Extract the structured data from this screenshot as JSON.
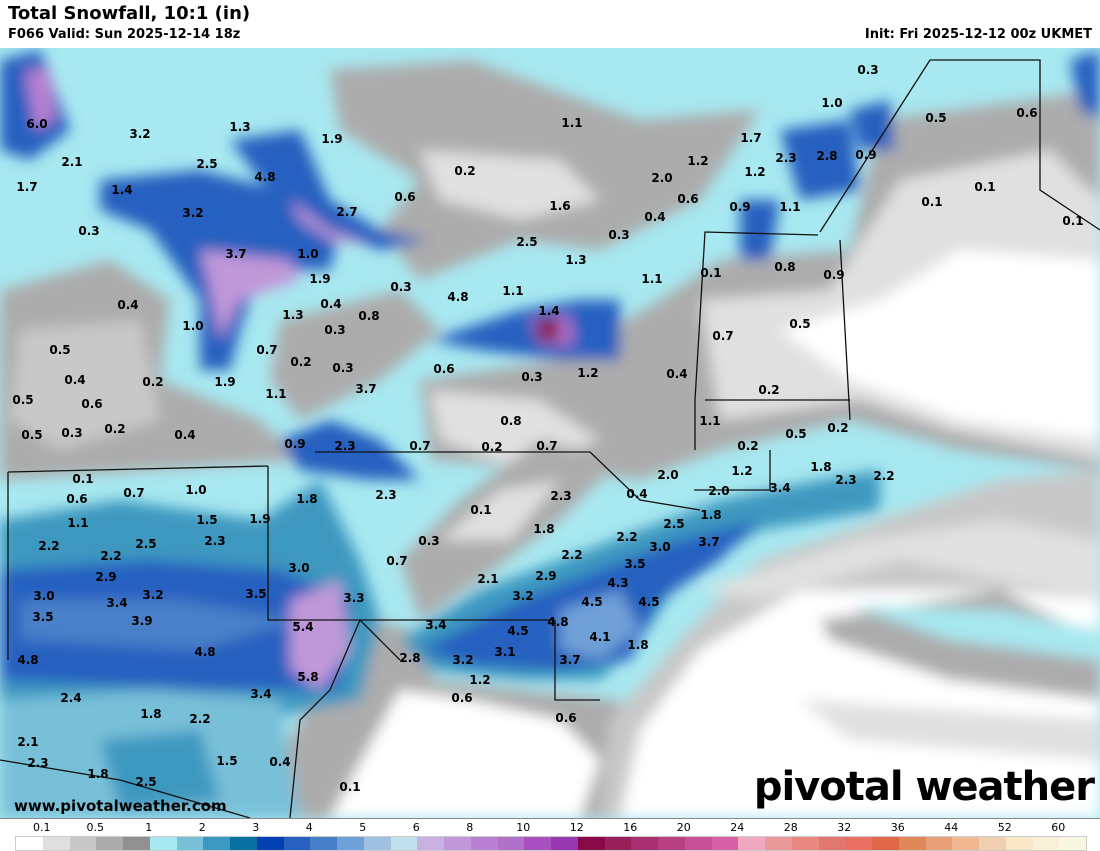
{
  "header": {
    "title": "Total Snowfall, 10:1 (in)",
    "valid": "F066 Valid: Sun 2025-12-14 18z",
    "init": "Init: Fri 2025-12-12 00z UKMET"
  },
  "watermark": "www.pivotalweather.com",
  "logo": "pivotal weather",
  "map_labels": [
    "0.3",
    "1.0",
    "0.5",
    "0.6",
    "6.0",
    "3.2",
    "1.3",
    "1.9",
    "1.1",
    "1.7",
    "2.5",
    "2.1",
    "4.8",
    "0.2",
    "2.3",
    "2.8",
    "0.9",
    "1.2",
    "1.2",
    "1.7",
    "1.4",
    "0.6",
    "2.0",
    "0.6",
    "0.1",
    "0.1",
    "3.2",
    "2.7",
    "1.6",
    "0.4",
    "0.9",
    "1.1",
    "0.1",
    "0.3",
    "0.3",
    "2.5",
    "3.7",
    "1.0",
    "1.3",
    "1.1",
    "0.1",
    "0.8",
    "0.9",
    "1.9",
    "0.3",
    "4.8",
    "1.1",
    "1.4",
    "0.4",
    "0.4",
    "1.3",
    "0.8",
    "0.3",
    "1.0",
    "0.5",
    "0.5",
    "0.7",
    "0.2",
    "0.3",
    "0.6",
    "0.7",
    "0.3",
    "1.2",
    "0.4",
    "0.4",
    "0.2",
    "1.9",
    "3.7",
    "0.2",
    "1.1",
    "0.5",
    "0.6",
    "0.8",
    "1.1",
    "0.5",
    "0.3",
    "0.2",
    "0.4",
    "0.9",
    "2.3",
    "0.7",
    "0.2",
    "0.7",
    "0.2",
    "0.5",
    "0.2",
    "2.0",
    "1.2",
    "1.8",
    "2.3",
    "2.2",
    "0.1",
    "0.7",
    "1.0",
    "3.4",
    "2.0",
    "0.6",
    "1.8",
    "2.3",
    "0.1",
    "2.3",
    "0.4",
    "1.8",
    "1.1",
    "1.5",
    "1.9",
    "1.8",
    "2.5",
    "2.2",
    "2.5",
    "2.3",
    "2.2",
    "0.3",
    "2.2",
    "3.0",
    "3.7",
    "2.2",
    "2.9",
    "3.0",
    "0.7",
    "2.1",
    "2.9",
    "3.5",
    "3.0",
    "3.4",
    "3.2",
    "3.5",
    "3.3",
    "3.2",
    "4.3",
    "4.5",
    "4.5",
    "3.5",
    "3.9",
    "5.4",
    "3.4",
    "4.8",
    "4.5",
    "4.1",
    "1.8",
    "4.8",
    "2.8",
    "3.2",
    "3.1",
    "3.7",
    "4.8",
    "5.8",
    "1.2",
    "3.4",
    "2.4",
    "0.6",
    "1.8",
    "2.2",
    "0.6",
    "2.1",
    "2.3",
    "1.5",
    "0.4",
    "1.8",
    "2.5",
    "0.1"
  ],
  "legend": {
    "units": "in",
    "ticks": [
      "0.1",
      "0.5",
      "1",
      "2",
      "3",
      "4",
      "5",
      "6",
      "8",
      "10",
      "12",
      "16",
      "20",
      "24",
      "28",
      "32",
      "36",
      "44",
      "52",
      "60"
    ],
    "colors": [
      "#ffffff",
      "#e0e0e0",
      "#c8c8c8",
      "#acacac",
      "#909090",
      "#a8e8f0",
      "#78c0d8",
      "#3c98c0",
      "#0870a0",
      "#0040b0",
      "#2860c0",
      "#4880c8",
      "#70a0d8",
      "#a0c0e0",
      "#c0e0ec",
      "#c8b0e0",
      "#c098d8",
      "#b880d0",
      "#b070c8",
      "#a850c0",
      "#9838b0",
      "#880848",
      "#982058",
      "#a83070",
      "#b84080",
      "#c85098",
      "#d860a8",
      "#f0a8c0",
      "#e89898",
      "#e88880",
      "#e07870",
      "#e87060",
      "#e06848",
      "#e08858",
      "#e8a078",
      "#f0b890",
      "#f0d0b0",
      "#f8e8c8",
      "#f8f0d8",
      "#f8f8e0"
    ]
  }
}
